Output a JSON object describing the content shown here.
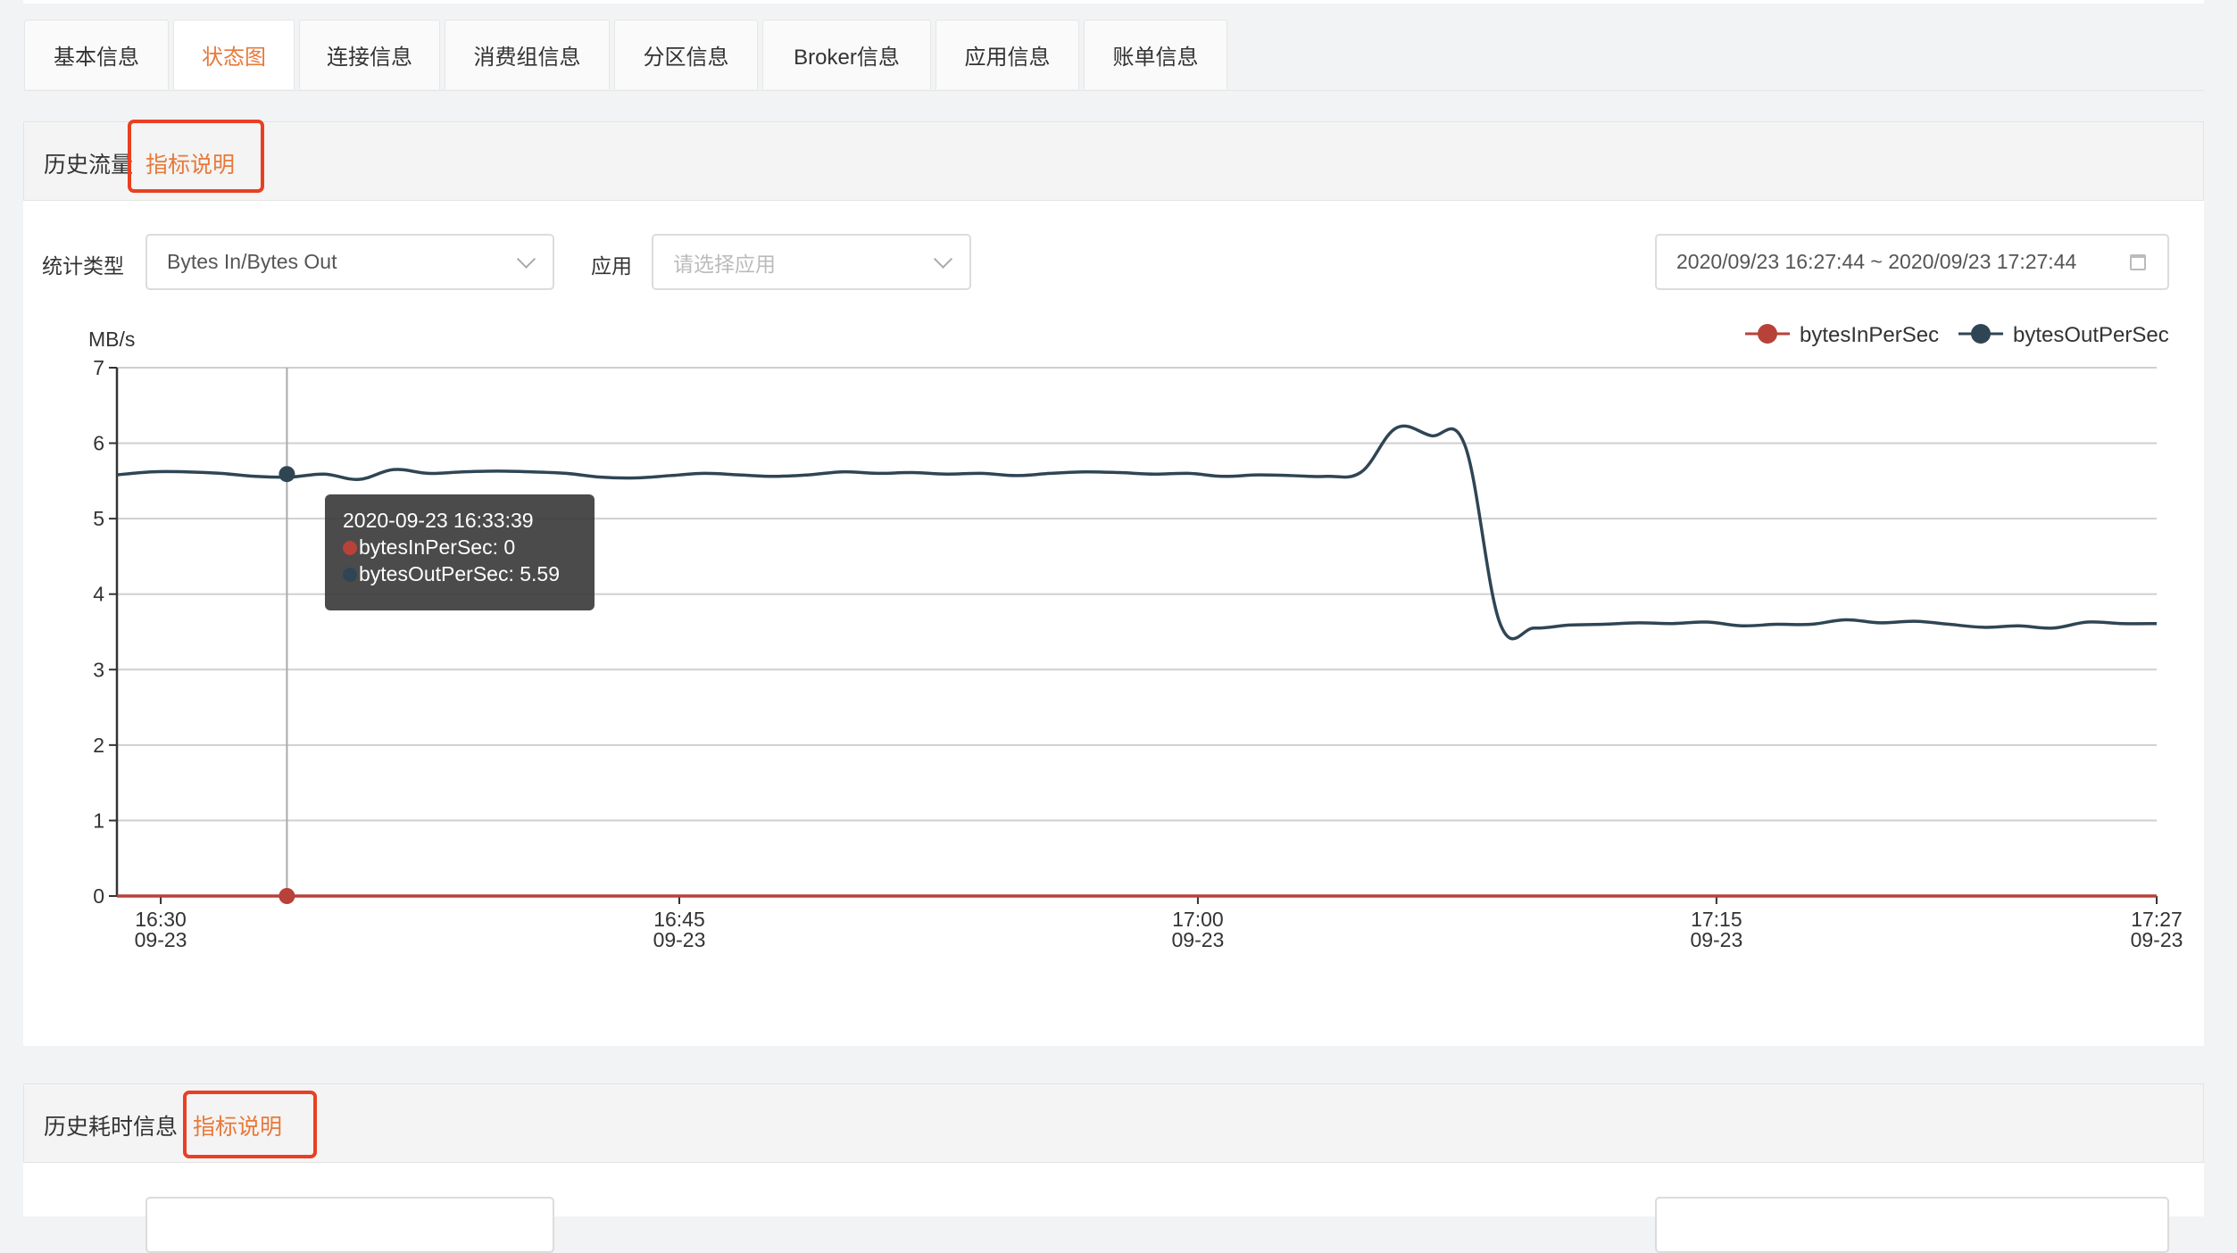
{
  "tabs": [
    {
      "label": "基本信息",
      "active": false
    },
    {
      "label": "状态图",
      "active": true
    },
    {
      "label": "连接信息",
      "active": false
    },
    {
      "label": "消费组信息",
      "active": false
    },
    {
      "label": "分区信息",
      "active": false
    },
    {
      "label": "Broker信息",
      "active": false
    },
    {
      "label": "应用信息",
      "active": false
    },
    {
      "label": "账单信息",
      "active": false
    }
  ],
  "accent_color": "#e8793a",
  "highlight_color": "#ea3f23",
  "traffic_panel": {
    "title": "历史流量",
    "help_link": "指标说明",
    "filters": {
      "stat_type_label": "统计类型",
      "stat_type_value": "Bytes In/Bytes Out",
      "app_label": "应用",
      "app_placeholder": "请选择应用",
      "date_range": "2020/09/23 16:27:44 ~ 2020/09/23 17:27:44"
    },
    "tooltip": {
      "time": "2020-09-23 16:33:39",
      "lines": [
        "bytesInPerSec: 0",
        "bytesOutPerSec: 5.59"
      ]
    }
  },
  "latency_panel": {
    "title": "历史耗时信息",
    "help_link": "指标说明"
  },
  "chart_data": {
    "type": "line",
    "ylabel": "MB/s",
    "ylim": [
      0,
      7
    ],
    "yticks": [
      "0",
      "1",
      "2",
      "3",
      "4",
      "5",
      "6",
      "7"
    ],
    "xlim": [
      "16:28:44",
      "17:27:44"
    ],
    "xticks": [
      {
        "time": "16:30",
        "label": [
          "16:30",
          "09-23"
        ]
      },
      {
        "time": "16:45",
        "label": [
          "16:45",
          "09-23"
        ]
      },
      {
        "time": "17:00",
        "label": [
          "17:00",
          "09-23"
        ]
      },
      {
        "time": "17:15",
        "label": [
          "17:15",
          "09-23"
        ]
      },
      {
        "time": "17:27:44",
        "label": [
          "17:27",
          "09-23"
        ]
      }
    ],
    "grid": true,
    "legend_position": "top-right",
    "x": [
      "16:28:44",
      "16:29:44",
      "16:30:44",
      "16:31:44",
      "16:32:44",
      "16:33:44",
      "16:34:44",
      "16:35:44",
      "16:36:44",
      "16:37:44",
      "16:38:44",
      "16:39:44",
      "16:40:44",
      "16:41:44",
      "16:42:44",
      "16:43:44",
      "16:44:44",
      "16:45:44",
      "16:46:44",
      "16:47:44",
      "16:48:44",
      "16:49:44",
      "16:50:44",
      "16:51:44",
      "16:52:44",
      "16:53:44",
      "16:54:44",
      "16:55:44",
      "16:56:44",
      "16:57:44",
      "16:58:44",
      "16:59:44",
      "17:00:44",
      "17:01:44",
      "17:02:44",
      "17:03:44",
      "17:04:44",
      "17:05:44",
      "17:06:44",
      "17:07:44",
      "17:08:44",
      "17:09:44",
      "17:10:44",
      "17:11:44",
      "17:12:44",
      "17:13:44",
      "17:14:44",
      "17:15:44",
      "17:16:44",
      "17:17:44",
      "17:18:44",
      "17:19:44",
      "17:20:44",
      "17:21:44",
      "17:22:44",
      "17:23:44",
      "17:24:44",
      "17:25:44",
      "17:26:44",
      "17:27:44"
    ],
    "series": [
      {
        "name": "bytesInPerSec",
        "color": "#b8413a",
        "values": [
          0,
          0,
          0,
          0,
          0,
          0,
          0,
          0,
          0,
          0,
          0,
          0,
          0,
          0,
          0,
          0,
          0,
          0,
          0,
          0,
          0,
          0,
          0,
          0,
          0,
          0,
          0,
          0,
          0,
          0,
          0,
          0,
          0,
          0,
          0,
          0,
          0,
          0,
          0,
          0,
          0,
          0,
          0,
          0,
          0,
          0,
          0,
          0,
          0,
          0,
          0,
          0,
          0,
          0,
          0,
          0,
          0,
          0,
          0,
          0
        ]
      },
      {
        "name": "bytesOutPerSec",
        "color": "#2f4554",
        "values": [
          5.58,
          5.62,
          5.62,
          5.6,
          5.56,
          5.55,
          5.59,
          5.52,
          5.65,
          5.6,
          5.62,
          5.63,
          5.62,
          5.6,
          5.55,
          5.54,
          5.57,
          5.6,
          5.58,
          5.56,
          5.58,
          5.62,
          5.6,
          5.61,
          5.59,
          5.6,
          5.57,
          5.6,
          5.62,
          5.61,
          5.59,
          5.6,
          5.56,
          5.58,
          5.57,
          5.56,
          5.62,
          6.2,
          6.1,
          5.96,
          3.62,
          3.55,
          3.59,
          3.6,
          3.62,
          3.61,
          3.63,
          3.58,
          3.6,
          3.6,
          3.66,
          3.62,
          3.64,
          3.6,
          3.56,
          3.58,
          3.55,
          3.63,
          3.61,
          3.61
        ]
      }
    ],
    "hover": {
      "time": "16:33:39",
      "values": [
        0,
        5.59
      ]
    }
  }
}
